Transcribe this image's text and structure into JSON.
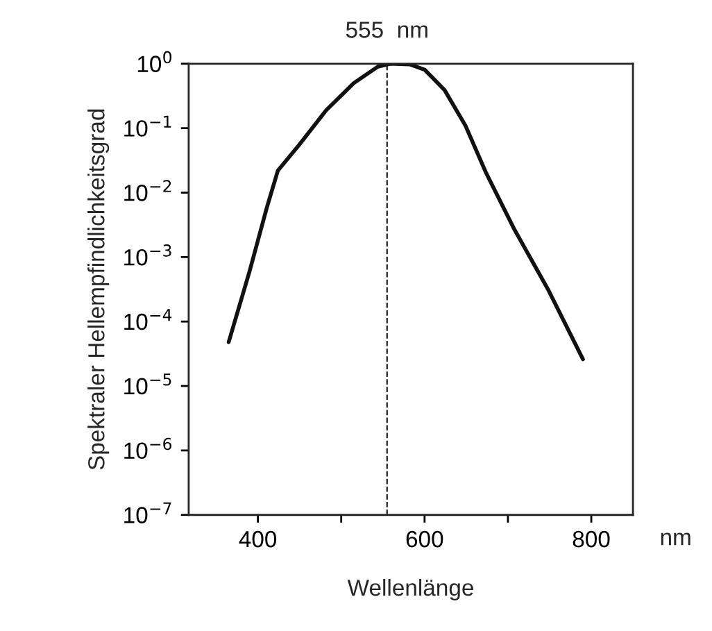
{
  "chart_data": {
    "type": "line",
    "xlabel": "Wellenlänge",
    "ylabel": "Spektraler Hellempfindlichkeitsgrad",
    "annotations": [
      "nm"
    ],
    "x": [
      365,
      390,
      411,
      424,
      449,
      482,
      515,
      544,
      559,
      582,
      600,
      624,
      649,
      674,
      707,
      749,
      790
    ],
    "series": [
      {
        "color": "#111111",
        "values": [
          4.8e-05,
          0.0006,
          0.006,
          0.022,
          0.054,
          0.19,
          0.5,
          0.9,
          1.0,
          0.98,
          0.81,
          0.39,
          0.11,
          0.02,
          0.0028,
          0.0003,
          2.6e-05
        ]
      }
    ],
    "log": "y",
    "xlim": [
      317,
      850
    ],
    "ylim": [
      1e-07,
      1
    ],
    "xticks": [
      400,
      {
        "value": 500,
        "label": null
      },
      600,
      {
        "value": 700,
        "label": null
      },
      800
    ],
    "yticks": [
      {
        "value": 1e-07,
        "label": "10$^{−7}$"
      },
      {
        "value": 1e-06,
        "label": "10$^{−6}$"
      },
      {
        "value": 1e-05,
        "label": "10$^{−5}$"
      },
      {
        "value": 0.0001,
        "label": "10$^{−4}$"
      },
      {
        "value": 0.001,
        "label": "10$^{−3}$"
      },
      {
        "value": 0.01,
        "label": "10$^{−2}$"
      },
      {
        "value": 0.1,
        "label": "10$^{−1}$"
      },
      {
        "value": 1,
        "label": "10$^{0}$"
      }
    ],
    "ref_lines": [
      {
        "axis": "x",
        "value": 555,
        "label": "555  nm",
        "color": "#111111",
        "line_style": "dashed"
      }
    ],
    "grid": false,
    "legend": false
  }
}
